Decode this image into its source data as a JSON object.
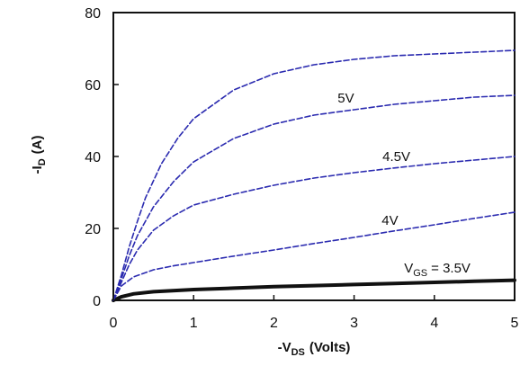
{
  "chart_data": {
    "type": "line",
    "title": "",
    "xlabel": "-V",
    "xlabel_sub": "DS",
    "xlabel_unit": "(Volts)",
    "ylabel": "-I",
    "ylabel_sub": "D",
    "ylabel_unit": "(A)",
    "xlim": [
      0,
      5
    ],
    "ylim": [
      0,
      80
    ],
    "xticks": [
      0,
      1,
      2,
      3,
      4,
      5
    ],
    "yticks": [
      0,
      20,
      40,
      60,
      80
    ],
    "xtick_labels": [
      "0",
      "1",
      "2",
      "3",
      "4",
      "5"
    ],
    "ytick_labels": [
      "0",
      "20",
      "40",
      "60",
      "80"
    ],
    "grid": false,
    "legend": "none",
    "vgs_prefix": "V",
    "vgs_sub": "GS",
    "series": [
      {
        "name": "",
        "label": "= 3.5V",
        "color": "#111111",
        "x": [
          0,
          0.1,
          0.25,
          0.5,
          1,
          1.5,
          2,
          2.5,
          3,
          3.5,
          4,
          4.5,
          5
        ],
        "y": [
          0,
          1.0,
          1.8,
          2.4,
          3.0,
          3.4,
          3.8,
          4.1,
          4.4,
          4.7,
          5.0,
          5.3,
          5.6
        ]
      },
      {
        "name": "",
        "label": "4V",
        "color": "#2b2bb0",
        "x": [
          0,
          0.1,
          0.25,
          0.5,
          0.75,
          1,
          1.5,
          2,
          2.5,
          3,
          3.5,
          4,
          4.5,
          5
        ],
        "y": [
          0,
          4.0,
          6.5,
          8.5,
          9.6,
          10.5,
          12.3,
          14.0,
          15.8,
          17.5,
          19.3,
          21.0,
          22.8,
          24.5
        ]
      },
      {
        "name": "",
        "label": "4.5V",
        "color": "#2b2bb0",
        "x": [
          0,
          0.1,
          0.2,
          0.3,
          0.5,
          0.75,
          1,
          1.5,
          2,
          2.5,
          3,
          3.5,
          4,
          4.5,
          5
        ],
        "y": [
          0,
          5.0,
          10.0,
          14.0,
          19.5,
          23.5,
          26.5,
          29.5,
          32.0,
          34.0,
          35.5,
          36.8,
          38.0,
          39.0,
          40.0
        ]
      },
      {
        "name": "",
        "label": "5V",
        "color": "#2b2bb0",
        "x": [
          0,
          0.1,
          0.2,
          0.3,
          0.5,
          0.75,
          1,
          1.5,
          2,
          2.5,
          3,
          3.5,
          4,
          4.5,
          5
        ],
        "y": [
          0,
          6.0,
          12.5,
          18.0,
          26.0,
          33.0,
          38.5,
          45.0,
          49.0,
          51.5,
          53.0,
          54.5,
          55.5,
          56.5,
          57.0
        ]
      },
      {
        "name": "",
        "label": "",
        "color": "#2b2bb0",
        "x": [
          0,
          0.1,
          0.2,
          0.3,
          0.4,
          0.6,
          0.8,
          1,
          1.5,
          2,
          2.5,
          3,
          3.5,
          4,
          4.5,
          5
        ],
        "y": [
          0,
          7.0,
          15.0,
          22.0,
          28.5,
          38.0,
          45.0,
          50.5,
          58.5,
          63.0,
          65.5,
          67.0,
          68.0,
          68.5,
          69.0,
          69.5
        ]
      }
    ]
  }
}
